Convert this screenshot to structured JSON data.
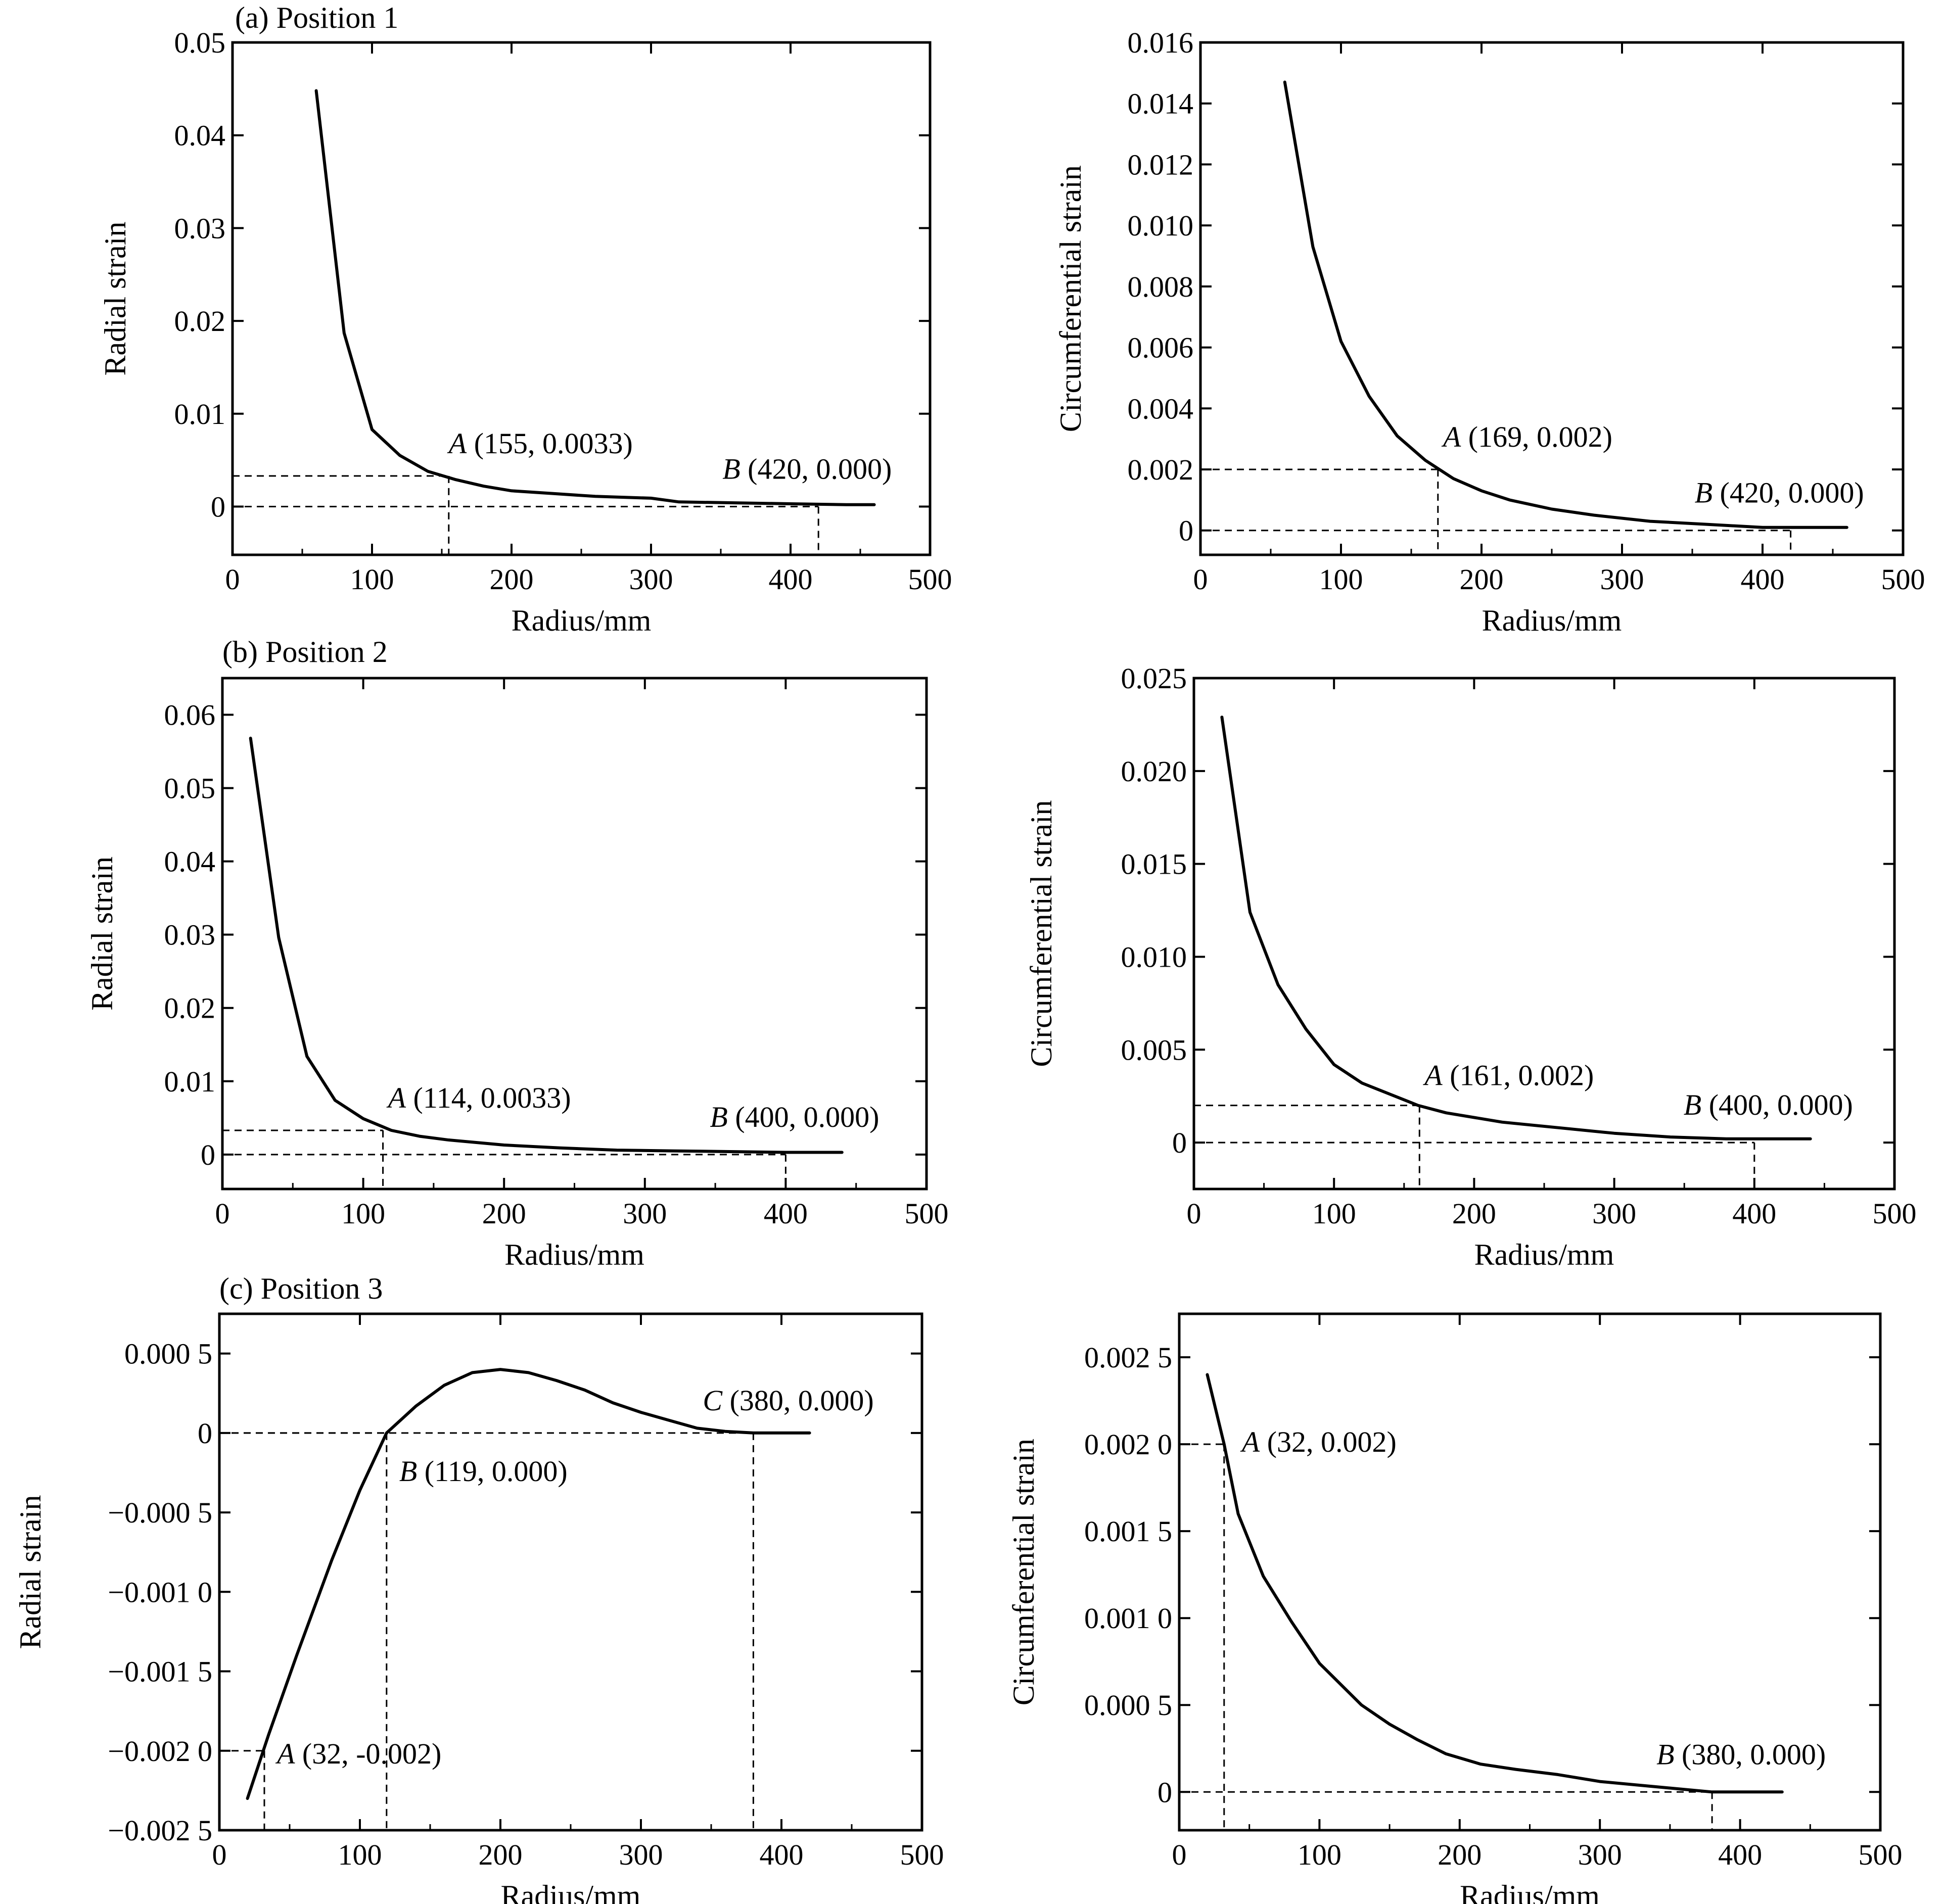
{
  "figure": {
    "background": "#ffffff",
    "line_color": "#000000"
  },
  "chart_data": [
    {
      "id": "a-radial",
      "type": "line",
      "panel_title": "(a) Position 1",
      "xlabel": "Radius/mm",
      "ylabel": "Radial strain",
      "xlim": [
        0,
        500
      ],
      "ylim": [
        -0.0052,
        0.05
      ],
      "xticks": [
        0,
        100,
        200,
        300,
        400,
        500
      ],
      "xtick_labels": [
        "0",
        "100",
        "200",
        "300",
        "400",
        "500"
      ],
      "yticks": [
        0,
        0.01,
        0.02,
        0.03,
        0.04,
        0.05
      ],
      "ytick_labels": [
        "0",
        "0.01",
        "0.02",
        "0.03",
        "0.04",
        "0.05"
      ],
      "grid": false,
      "series": [
        {
          "x": [
            60,
            80,
            100,
            120,
            140,
            160,
            180,
            200,
            230,
            260,
            300,
            320,
            360,
            400,
            440,
            460
          ],
          "y": [
            0.0448,
            0.0187,
            0.0083,
            0.0055,
            0.0038,
            0.0029,
            0.0022,
            0.0017,
            0.0014,
            0.0011,
            0.0009,
            0.0005,
            0.0004,
            0.0003,
            0.0002,
            0.0002
          ]
        }
      ],
      "annotations": [
        {
          "point": "A",
          "text": "(155, 0.0033)",
          "x": 155,
          "y": 0.0033
        },
        {
          "point": "B",
          "text": "(420, 0.000)",
          "x": 420,
          "y": 0.0
        }
      ]
    },
    {
      "id": "a-circ",
      "type": "line",
      "panel_title": "",
      "xlabel": "Radius/mm",
      "ylabel": "Circumferential strain",
      "xlim": [
        0,
        500
      ],
      "ylim": [
        -0.0008,
        0.016
      ],
      "xticks": [
        0,
        100,
        200,
        300,
        400,
        500
      ],
      "xtick_labels": [
        "0",
        "100",
        "200",
        "300",
        "400",
        "500"
      ],
      "yticks": [
        0,
        0.002,
        0.004,
        0.006,
        0.008,
        0.01,
        0.012,
        0.014,
        0.016
      ],
      "ytick_labels": [
        "0",
        "0.002",
        "0.004",
        "0.006",
        "0.008",
        "0.010",
        "0.012",
        "0.014",
        "0.016"
      ],
      "grid": false,
      "series": [
        {
          "x": [
            60,
            80,
            100,
            120,
            140,
            160,
            180,
            200,
            220,
            250,
            280,
            320,
            360,
            400,
            440,
            460
          ],
          "y": [
            0.0147,
            0.0093,
            0.0062,
            0.0044,
            0.0031,
            0.0023,
            0.0017,
            0.0013,
            0.001,
            0.0007,
            0.0005,
            0.0003,
            0.0002,
            0.0001,
            0.0001,
            0.0001
          ]
        }
      ],
      "annotations": [
        {
          "point": "A",
          "text": "(169, 0.002)",
          "x": 169,
          "y": 0.002
        },
        {
          "point": "B",
          "text": "(420, 0.000)",
          "x": 420,
          "y": 0.0
        }
      ]
    },
    {
      "id": "b-radial",
      "type": "line",
      "panel_title": "(b) Position 2",
      "xlabel": "Radius/mm",
      "ylabel": "Radial strain",
      "xlim": [
        0,
        500
      ],
      "ylim": [
        -0.0047,
        0.065
      ],
      "xticks": [
        0,
        100,
        200,
        300,
        400,
        500
      ],
      "xtick_labels": [
        "0",
        "100",
        "200",
        "300",
        "400",
        "500"
      ],
      "yticks": [
        0,
        0.01,
        0.02,
        0.03,
        0.04,
        0.05,
        0.06
      ],
      "ytick_labels": [
        "0",
        "0.01",
        "0.02",
        "0.03",
        "0.04",
        "0.05",
        "0.06"
      ],
      "grid": false,
      "series": [
        {
          "x": [
            20,
            40,
            60,
            80,
            100,
            120,
            140,
            160,
            200,
            240,
            280,
            320,
            360,
            400,
            440
          ],
          "y": [
            0.0568,
            0.0296,
            0.0134,
            0.0074,
            0.0049,
            0.0033,
            0.0025,
            0.002,
            0.0013,
            0.0009,
            0.0006,
            0.0005,
            0.0004,
            0.0003,
            0.0003
          ]
        }
      ],
      "annotations": [
        {
          "point": "A",
          "text": "(114, 0.0033)",
          "x": 114,
          "y": 0.0033
        },
        {
          "point": "B",
          "text": "(400, 0.000)",
          "x": 400,
          "y": 0.0
        }
      ]
    },
    {
      "id": "b-circ",
      "type": "line",
      "panel_title": "",
      "xlabel": "Radius/mm",
      "ylabel": "Circumferential strain",
      "xlim": [
        0,
        500
      ],
      "ylim": [
        -0.0025,
        0.025
      ],
      "xticks": [
        0,
        100,
        200,
        300,
        400,
        500
      ],
      "xtick_labels": [
        "0",
        "100",
        "200",
        "300",
        "400",
        "500"
      ],
      "yticks": [
        0,
        0.005,
        0.01,
        0.015,
        0.02,
        0.025
      ],
      "ytick_labels": [
        "0",
        "0.005",
        "0.010",
        "0.015",
        "0.020",
        "0.025"
      ],
      "grid": false,
      "series": [
        {
          "x": [
            20,
            40,
            60,
            80,
            100,
            120,
            140,
            160,
            180,
            220,
            260,
            300,
            340,
            380,
            420,
            440
          ],
          "y": [
            0.0229,
            0.0124,
            0.0085,
            0.0061,
            0.0042,
            0.0032,
            0.0026,
            0.002,
            0.0016,
            0.0011,
            0.0008,
            0.0005,
            0.0003,
            0.0002,
            0.0002,
            0.0002
          ]
        }
      ],
      "annotations": [
        {
          "point": "A",
          "text": "(161, 0.002)",
          "x": 161,
          "y": 0.002
        },
        {
          "point": "B",
          "text": "(400, 0.000)",
          "x": 400,
          "y": 0.0
        }
      ]
    },
    {
      "id": "c-radial",
      "type": "line",
      "panel_title": "(c) Position 3",
      "xlabel": "Radius/mm",
      "ylabel": "Radial strain",
      "xlim": [
        0,
        500
      ],
      "ylim": [
        -0.0025,
        0.00075
      ],
      "xticks": [
        0,
        100,
        200,
        300,
        400,
        500
      ],
      "xtick_labels": [
        "0",
        "100",
        "200",
        "300",
        "400",
        "500"
      ],
      "yticks": [
        -0.0025,
        -0.002,
        -0.0015,
        -0.001,
        -0.0005,
        0,
        0.0005
      ],
      "ytick_labels": [
        "−0.002 5",
        "−0.002 0",
        "−0.001 5",
        "−0.001 0",
        "−0.000 5",
        "0",
        "0.000 5"
      ],
      "grid": false,
      "series": [
        {
          "x": [
            20,
            35,
            55,
            80,
            100,
            119,
            140,
            160,
            180,
            200,
            220,
            240,
            260,
            280,
            300,
            320,
            340,
            360,
            380,
            400,
            420
          ],
          "y": [
            -0.0023,
            -0.0019,
            -0.0014,
            -0.0008,
            -0.00036,
            0.0,
            0.00017,
            0.0003,
            0.00038,
            0.0004,
            0.00038,
            0.00033,
            0.00027,
            0.00019,
            0.00013,
            8e-05,
            3e-05,
            1e-05,
            0.0,
            0.0,
            0.0
          ]
        }
      ],
      "annotations": [
        {
          "point": "A",
          "text": "(32, -0.002)",
          "x": 32,
          "y": -0.002
        },
        {
          "point": "B",
          "text": "(119, 0.000)",
          "x": 119,
          "y": 0.0
        },
        {
          "point": "C",
          "text": "(380, 0.000)",
          "x": 380,
          "y": 0.0
        }
      ]
    },
    {
      "id": "c-circ",
      "type": "line",
      "panel_title": "",
      "xlabel": "Radius/mm",
      "ylabel": "Circumferential strain",
      "xlim": [
        0,
        500
      ],
      "ylim": [
        -0.00022,
        0.00275
      ],
      "xticks": [
        0,
        100,
        200,
        300,
        400,
        500
      ],
      "xtick_labels": [
        "0",
        "100",
        "200",
        "300",
        "400",
        "500"
      ],
      "yticks": [
        0,
        0.0005,
        0.001,
        0.0015,
        0.002,
        0.0025
      ],
      "ytick_labels": [
        "0",
        "0.000 5",
        "0.001 0",
        "0.001 5",
        "0.002 0",
        "0.002 5"
      ],
      "grid": false,
      "series": [
        {
          "x": [
            20,
            32,
            42,
            60,
            80,
            100,
            130,
            150,
            170,
            190,
            215,
            240,
            270,
            300,
            340,
            380,
            400,
            430
          ],
          "y": [
            0.0024,
            0.002,
            0.0016,
            0.00124,
            0.00098,
            0.00074,
            0.0005,
            0.00039,
            0.0003,
            0.00022,
            0.00016,
            0.00013,
            0.0001,
            6e-05,
            3e-05,
            0.0,
            0.0,
            0.0
          ]
        }
      ],
      "annotations": [
        {
          "point": "A",
          "text": "(32, 0.002)",
          "x": 32,
          "y": 0.002
        },
        {
          "point": "B",
          "text": "(380, 0.000)",
          "x": 380,
          "y": 0.0
        }
      ]
    }
  ]
}
